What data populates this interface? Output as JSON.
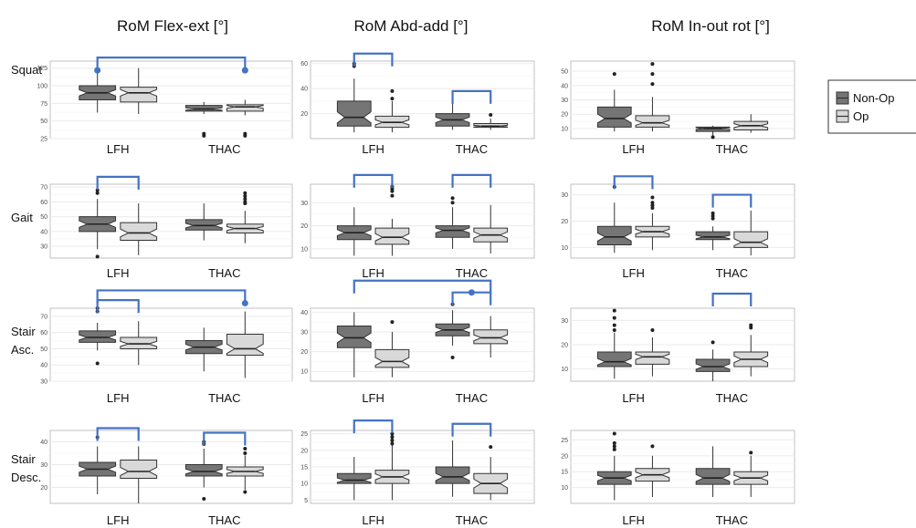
{
  "column_titles": [
    "RoM Flex-ext [°]",
    "RoM Abd-add [°]",
    "RoM In-out rot [°]"
  ],
  "row_labels": [
    "Squat",
    "Gait",
    "Stair\nAsc.",
    "Stair\nDesc."
  ],
  "legend": {
    "items": [
      {
        "label": "Non-Op",
        "color": "#757575"
      },
      {
        "label": "Op",
        "color": "#d9d9d9"
      }
    ]
  },
  "colors": {
    "non_op_fill": "#757575",
    "op_fill": "#d9d9d9",
    "bracket": "#4472c4",
    "panel_grid": "#ebebeb"
  },
  "chart_data": [
    {
      "type": "box",
      "row": "Squat",
      "column": "RoM Flex-ext [°]",
      "categories": [
        "LFH",
        "THAC"
      ],
      "ylim": [
        25,
        135
      ],
      "yticks": [
        25,
        50,
        75,
        100,
        125
      ],
      "series": [
        {
          "name": "Non-Op",
          "boxes": [
            {
              "min": 62,
              "q1": 80,
              "median": 90,
              "q3": 100,
              "max": 127,
              "outliers": []
            },
            {
              "min": 60,
              "q1": 64,
              "median": 67,
              "q3": 72,
              "max": 77,
              "outliers": [
                32,
                29
              ]
            }
          ]
        },
        {
          "name": "Op",
          "boxes": [
            {
              "min": 60,
              "q1": 77,
              "median": 90,
              "q3": 98,
              "max": 125,
              "outliers": []
            },
            {
              "min": 58,
              "q1": 64,
              "median": 70,
              "q3": 73,
              "max": 80,
              "outliers": [
                32,
                29
              ]
            }
          ]
        }
      ],
      "brackets": [
        {
          "from": "LFH Non-Op",
          "to": "THAC Op",
          "level": 140,
          "dots": true
        }
      ]
    },
    {
      "type": "box",
      "row": "Squat",
      "column": "RoM Abd-add [°]",
      "categories": [
        "LFH",
        "THAC"
      ],
      "ylim": [
        0,
        62
      ],
      "yticks": [
        20,
        40,
        60
      ],
      "series": [
        {
          "name": "Non-Op",
          "boxes": [
            {
              "min": 5,
              "q1": 10,
              "median": 17,
              "q3": 30,
              "max": 48,
              "outliers": [
                60,
                58
              ]
            },
            {
              "min": 7,
              "q1": 10,
              "median": 15,
              "q3": 20,
              "max": 34,
              "outliers": []
            }
          ]
        },
        {
          "name": "Op",
          "boxes": [
            {
              "min": 5,
              "q1": 9,
              "median": 13,
              "q3": 18,
              "max": 30,
              "outliers": [
                38,
                32
              ]
            },
            {
              "min": 7,
              "q1": 9,
              "median": 10,
              "q3": 12,
              "max": 16,
              "outliers": [
                19
              ]
            }
          ]
        }
      ],
      "brackets": [
        {
          "from": "LFH Non-Op",
          "to": "LFH Op",
          "level": 68,
          "dots": false
        },
        {
          "from": "THAC Non-Op",
          "to": "THAC Op",
          "level": 38,
          "dots": false
        }
      ]
    },
    {
      "type": "box",
      "row": "Squat",
      "column": "RoM In-out rot [°]",
      "categories": [
        "LFH",
        "THAC"
      ],
      "ylim": [
        3,
        57
      ],
      "yticks": [
        10,
        20,
        30,
        40,
        50
      ],
      "series": [
        {
          "name": "Non-Op",
          "boxes": [
            {
              "min": 8,
              "q1": 11,
              "median": 17,
              "q3": 25,
              "max": 37,
              "outliers": [
                48
              ]
            },
            {
              "min": 5,
              "q1": 8,
              "median": 10,
              "q3": 11,
              "max": 12,
              "outliers": [
                4
              ]
            }
          ]
        },
        {
          "name": "Op",
          "boxes": [
            {
              "min": 8,
              "q1": 11,
              "median": 14,
              "q3": 19,
              "max": 32,
              "outliers": [
                55,
                48,
                41
              ]
            },
            {
              "min": 7,
              "q1": 9,
              "median": 12,
              "q3": 15,
              "max": 20,
              "outliers": []
            }
          ]
        }
      ],
      "brackets": []
    },
    {
      "type": "box",
      "row": "Gait",
      "column": "RoM Flex-ext [°]",
      "categories": [
        "LFH",
        "THAC"
      ],
      "ylim": [
        22,
        72
      ],
      "yticks": [
        30,
        40,
        50,
        60,
        70
      ],
      "series": [
        {
          "name": "Non-Op",
          "boxes": [
            {
              "min": 28,
              "q1": 40,
              "median": 45,
              "q3": 50,
              "max": 62,
              "outliers": [
                68,
                66,
                23
              ]
            },
            {
              "min": 34,
              "q1": 41,
              "median": 44,
              "q3": 48,
              "max": 59,
              "outliers": []
            }
          ]
        },
        {
          "name": "Op",
          "boxes": [
            {
              "min": 24,
              "q1": 34,
              "median": 39,
              "q3": 46,
              "max": 59,
              "outliers": []
            },
            {
              "min": 32,
              "q1": 39,
              "median": 42,
              "q3": 45,
              "max": 54,
              "outliers": [
                66,
                64,
                62,
                60,
                59
              ]
            }
          ]
        }
      ],
      "brackets": [
        {
          "from": "LFH Non-Op",
          "to": "LFH Op",
          "level": 77,
          "dots": false
        }
      ]
    },
    {
      "type": "box",
      "row": "Gait",
      "column": "RoM Abd-add [°]",
      "categories": [
        "LFH",
        "THAC"
      ],
      "ylim": [
        6,
        38
      ],
      "yticks": [
        10,
        20,
        30
      ],
      "series": [
        {
          "name": "Non-Op",
          "boxes": [
            {
              "min": 7,
              "q1": 14,
              "median": 17,
              "q3": 20,
              "max": 28,
              "outliers": []
            },
            {
              "min": 10,
              "q1": 15,
              "median": 18,
              "q3": 20,
              "max": 28,
              "outliers": [
                32,
                30
              ]
            }
          ]
        },
        {
          "name": "Op",
          "boxes": [
            {
              "min": 7,
              "q1": 12,
              "median": 15,
              "q3": 19,
              "max": 23,
              "outliers": [
                37,
                36,
                35,
                33
              ]
            },
            {
              "min": 8,
              "q1": 13,
              "median": 16,
              "q3": 19,
              "max": 29,
              "outliers": []
            }
          ]
        }
      ],
      "brackets": [
        {
          "from": "LFH Non-Op",
          "to": "LFH Op",
          "level": 42,
          "dots": false
        },
        {
          "from": "THAC Non-Op",
          "to": "THAC Op",
          "level": 42,
          "dots": false
        }
      ]
    },
    {
      "type": "box",
      "row": "Gait",
      "column": "RoM In-out rot [°]",
      "categories": [
        "LFH",
        "THAC"
      ],
      "ylim": [
        6,
        34
      ],
      "yticks": [
        10,
        20,
        30
      ],
      "series": [
        {
          "name": "Non-Op",
          "boxes": [
            {
              "min": 8,
              "q1": 11,
              "median": 14,
              "q3": 18,
              "max": 27,
              "outliers": [
                33
              ]
            },
            {
              "min": 9,
              "q1": 13,
              "median": 14,
              "q3": 16,
              "max": 18,
              "outliers": [
                23,
                22,
                21
              ]
            }
          ]
        },
        {
          "name": "Op",
          "boxes": [
            {
              "min": 9,
              "q1": 14,
              "median": 16,
              "q3": 18,
              "max": 23,
              "outliers": [
                29,
                27,
                26,
                25
              ]
            },
            {
              "min": 7,
              "q1": 10,
              "median": 12,
              "q3": 16,
              "max": 24,
              "outliers": []
            }
          ]
        }
      ],
      "brackets": [
        {
          "from": "LFH Non-Op",
          "to": "LFH Op",
          "level": 37,
          "dots": false
        },
        {
          "from": "THAC Non-Op",
          "to": "THAC Op",
          "level": 30,
          "dots": false
        }
      ]
    },
    {
      "type": "box",
      "row": "Stair\nAsc.",
      "column": "RoM Flex-ext [°]",
      "categories": [
        "LFH",
        "THAC"
      ],
      "ylim": [
        30,
        75
      ],
      "yticks": [
        30,
        40,
        50,
        60,
        70
      ],
      "series": [
        {
          "name": "Non-Op",
          "boxes": [
            {
              "min": 49,
              "q1": 54,
              "median": 57,
              "q3": 61,
              "max": 66,
              "outliers": [
                75,
                73,
                41
              ]
            },
            {
              "min": 36,
              "q1": 47,
              "median": 51,
              "q3": 55,
              "max": 63,
              "outliers": []
            }
          ]
        },
        {
          "name": "Op",
          "boxes": [
            {
              "min": 40,
              "q1": 50,
              "median": 53,
              "q3": 57,
              "max": 67,
              "outliers": []
            },
            {
              "min": 32,
              "q1": 46,
              "median": 50,
              "q3": 59,
              "max": 73,
              "outliers": []
            }
          ]
        }
      ],
      "brackets": [
        {
          "from": "LFH Non-Op",
          "to": "THAC Op",
          "level": 86,
          "dots": true,
          "dot_end": "right"
        },
        {
          "from": "LFH Non-Op",
          "to": "LFH Op",
          "level": 80,
          "dots": false
        }
      ]
    },
    {
      "type": "box",
      "row": "Stair\nAsc.",
      "column": "RoM Abd-add [°]",
      "categories": [
        "LFH",
        "THAC"
      ],
      "ylim": [
        5,
        42
      ],
      "yticks": [
        10,
        20,
        30,
        40
      ],
      "series": [
        {
          "name": "Non-Op",
          "boxes": [
            {
              "min": 7,
              "q1": 22,
              "median": 27,
              "q3": 33,
              "max": 40,
              "outliers": []
            },
            {
              "min": 23,
              "q1": 28,
              "median": 31,
              "q3": 34,
              "max": 41,
              "outliers": [
                44,
                17
              ]
            }
          ]
        },
        {
          "name": "Op",
          "boxes": [
            {
              "min": 7,
              "q1": 12,
              "median": 15,
              "q3": 21,
              "max": 30,
              "outliers": [
                35
              ]
            },
            {
              "min": 17,
              "q1": 24,
              "median": 27,
              "q3": 31,
              "max": 38,
              "outliers": []
            }
          ]
        }
      ],
      "brackets": [
        {
          "from": "LFH Non-Op",
          "to": "THAC Op",
          "level": 56,
          "dots": false
        },
        {
          "from": "THAC Non-Op",
          "to": "THAC Op",
          "level": 50,
          "dots": true,
          "dot_end": "mid"
        }
      ]
    },
    {
      "type": "box",
      "row": "Stair\nAsc.",
      "column": "RoM In-out rot [°]",
      "categories": [
        "LFH",
        "THAC"
      ],
      "ylim": [
        5,
        35
      ],
      "yticks": [
        10,
        20,
        30
      ],
      "series": [
        {
          "name": "Non-Op",
          "boxes": [
            {
              "min": 6,
              "q1": 11,
              "median": 13,
              "q3": 17,
              "max": 25,
              "outliers": [
                34,
                31,
                28,
                26
              ]
            },
            {
              "min": 5,
              "q1": 9,
              "median": 11,
              "q3": 14,
              "max": 18,
              "outliers": [
                21
              ]
            }
          ]
        },
        {
          "name": "Op",
          "boxes": [
            {
              "min": 7,
              "q1": 12,
              "median": 15,
              "q3": 17,
              "max": 23,
              "outliers": [
                26
              ]
            },
            {
              "min": 7,
              "q1": 11,
              "median": 14,
              "q3": 17,
              "max": 24,
              "outliers": [
                28,
                27
              ]
            }
          ]
        }
      ],
      "brackets": [
        {
          "from": "THAC Non-Op",
          "to": "THAC Op",
          "level": 41,
          "dots": false
        }
      ]
    },
    {
      "type": "box",
      "row": "Stair\nDesc.",
      "column": "RoM Flex-ext [°]",
      "categories": [
        "LFH",
        "THAC"
      ],
      "ylim": [
        13,
        45
      ],
      "yticks": [
        20,
        30,
        40
      ],
      "series": [
        {
          "name": "Non-Op",
          "boxes": [
            {
              "min": 17,
              "q1": 25,
              "median": 28,
              "q3": 31,
              "max": 38,
              "outliers": [
                42
              ]
            },
            {
              "min": 20,
              "q1": 25,
              "median": 27,
              "q3": 30,
              "max": 37,
              "outliers": [
                40,
                39,
                15
              ]
            }
          ]
        },
        {
          "name": "Op",
          "boxes": [
            {
              "min": 13,
              "q1": 24,
              "median": 27,
              "q3": 32,
              "max": 38,
              "outliers": []
            },
            {
              "min": 19,
              "q1": 25,
              "median": 27,
              "q3": 29,
              "max": 34,
              "outliers": [
                37,
                35,
                18
              ]
            }
          ]
        }
      ],
      "brackets": [
        {
          "from": "LFH Non-Op",
          "to": "LFH Op",
          "level": 46,
          "dots": false
        },
        {
          "from": "THAC Non-Op",
          "to": "THAC Op",
          "level": 44,
          "dots": false
        }
      ]
    },
    {
      "type": "box",
      "row": "Stair\nDesc.",
      "column": "RoM Abd-add [°]",
      "categories": [
        "LFH",
        "THAC"
      ],
      "ylim": [
        4,
        26
      ],
      "yticks": [
        5,
        10,
        15,
        20,
        25
      ],
      "series": [
        {
          "name": "Non-Op",
          "boxes": [
            {
              "min": 5,
              "q1": 10,
              "median": 11,
              "q3": 13,
              "max": 18,
              "outliers": []
            },
            {
              "min": 6,
              "q1": 10,
              "median": 12,
              "q3": 15,
              "max": 23,
              "outliers": []
            }
          ]
        },
        {
          "name": "Op",
          "boxes": [
            {
              "min": 5,
              "q1": 10,
              "median": 12,
              "q3": 14,
              "max": 22,
              "outliers": [
                25,
                24,
                23,
                22
              ]
            },
            {
              "min": 5,
              "q1": 7,
              "median": 10,
              "q3": 13,
              "max": 18,
              "outliers": [
                21
              ]
            }
          ]
        }
      ],
      "brackets": [
        {
          "from": "LFH Non-Op",
          "to": "LFH Op",
          "level": 29,
          "dots": false
        },
        {
          "from": "THAC Non-Op",
          "to": "THAC Op",
          "level": 28,
          "dots": false
        }
      ]
    },
    {
      "type": "box",
      "row": "Stair\nDesc.",
      "column": "RoM In-out rot [°]",
      "categories": [
        "LFH",
        "THAC"
      ],
      "ylim": [
        5,
        28
      ],
      "yticks": [
        10,
        15,
        20,
        25
      ],
      "series": [
        {
          "name": "Non-Op",
          "boxes": [
            {
              "min": 6,
              "q1": 11,
              "median": 13,
              "q3": 15,
              "max": 20,
              "outliers": [
                27,
                24,
                23,
                22
              ]
            },
            {
              "min": 7,
              "q1": 11,
              "median": 13,
              "q3": 16,
              "max": 23,
              "outliers": []
            }
          ]
        },
        {
          "name": "Op",
          "boxes": [
            {
              "min": 7,
              "q1": 12,
              "median": 14,
              "q3": 16,
              "max": 20,
              "outliers": [
                23
              ]
            },
            {
              "min": 7,
              "q1": 11,
              "median": 13,
              "q3": 15,
              "max": 20,
              "outliers": [
                21
              ]
            }
          ]
        }
      ],
      "brackets": []
    }
  ]
}
